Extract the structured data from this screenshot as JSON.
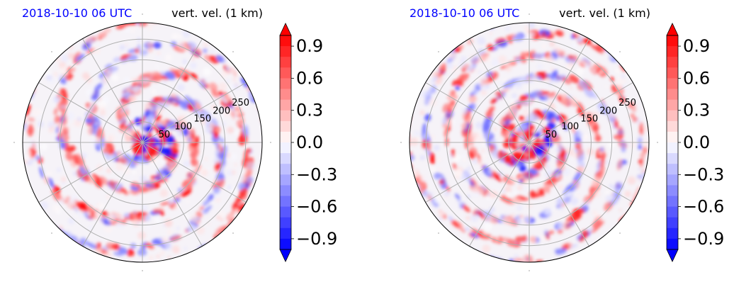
{
  "colors": {
    "date_label": "#0000ff",
    "title": "#000000",
    "grid": "#b0b0b0",
    "positive": "#ff0000",
    "negative": "#0000ff",
    "neutral": "#ffffff"
  },
  "chart_data": [
    {
      "type": "heatmap",
      "projection": "polar",
      "date_label": "2018-10-10 06 UTC",
      "title": "vert. vel. (1 km)",
      "radial_ticks": [
        "50",
        "100",
        "150",
        "200",
        "250"
      ],
      "radial_tick_values": [
        50,
        100,
        150,
        200,
        250
      ],
      "r_max": 290,
      "grid": true,
      "colorbar": {
        "ticks": [
          "0.9",
          "0.6",
          "0.3",
          "0.0",
          "−0.3",
          "−0.6",
          "−0.9"
        ],
        "tick_values": [
          0.9,
          0.6,
          0.3,
          0.0,
          -0.3,
          -0.6,
          -0.9
        ],
        "range": [
          -1.0,
          1.0
        ],
        "extend": "both",
        "cmap": "bwr"
      }
    },
    {
      "type": "heatmap",
      "projection": "polar",
      "date_label": "2018-10-10 06 UTC",
      "title": "vert. vel. (1 km)",
      "radial_ticks": [
        "50",
        "100",
        "150",
        "200",
        "250"
      ],
      "radial_tick_values": [
        50,
        100,
        150,
        200,
        250
      ],
      "r_max": 290,
      "grid": true,
      "colorbar": {
        "ticks": [
          "0.9",
          "0.6",
          "0.3",
          "0.0",
          "−0.3",
          "−0.6",
          "−0.9"
        ],
        "tick_values": [
          0.9,
          0.6,
          0.3,
          0.0,
          -0.3,
          -0.6,
          -0.9
        ],
        "range": [
          -1.0,
          1.0
        ],
        "extend": "both",
        "cmap": "bwr"
      }
    }
  ]
}
